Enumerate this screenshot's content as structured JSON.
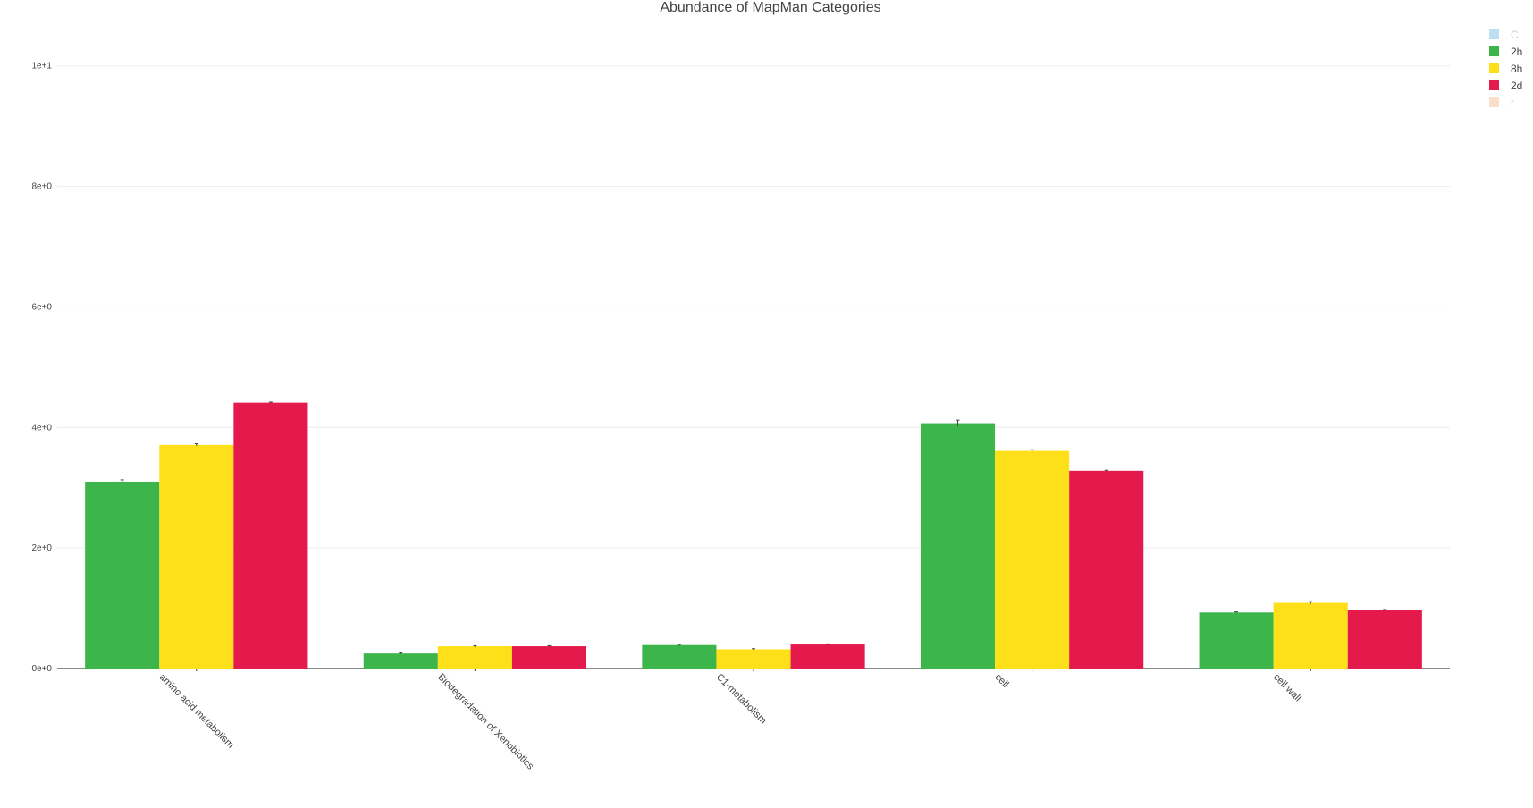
{
  "chart_data": {
    "type": "bar",
    "title": "Abundance of MapMan Categories",
    "xlabel": "",
    "ylabel": "",
    "categories": [
      "amino acid metabolism",
      "Biodegradation of Xenobiotics",
      "C1-metabolism",
      "cell",
      "cell wall"
    ],
    "ylim": [
      0,
      10.5
    ],
    "yticks": [
      0,
      2,
      4,
      6,
      8,
      10
    ],
    "ytick_labels": [
      "0e+0",
      "2e+0",
      "4e+0",
      "6e+0",
      "8e+0",
      "1e+1"
    ],
    "grid": true,
    "legend_position": "top-right",
    "series": [
      {
        "name": "C",
        "color": "#7ec0e0",
        "hidden": true,
        "values": [
          0,
          0,
          0,
          0,
          0
        ]
      },
      {
        "name": "2h",
        "color": "#3cb54a",
        "values": [
          3.1,
          0.25,
          0.39,
          4.07,
          0.93
        ],
        "errors": [
          0.03,
          0.01,
          0.01,
          0.05,
          0.01
        ]
      },
      {
        "name": "8h",
        "color": "#fde01a",
        "values": [
          3.71,
          0.37,
          0.32,
          3.61,
          1.09
        ],
        "errors": [
          0.02,
          0.01,
          0.01,
          0.02,
          0.02
        ]
      },
      {
        "name": "2d",
        "color": "#e51a4c",
        "values": [
          4.41,
          0.37,
          0.4,
          3.28,
          0.97
        ],
        "errors": [
          0.01,
          0.01,
          0.01,
          0.01,
          0.01
        ]
      },
      {
        "name": "r",
        "color": "#f7be95",
        "hidden": true,
        "values": [
          0,
          0,
          0,
          0,
          0
        ]
      }
    ]
  }
}
